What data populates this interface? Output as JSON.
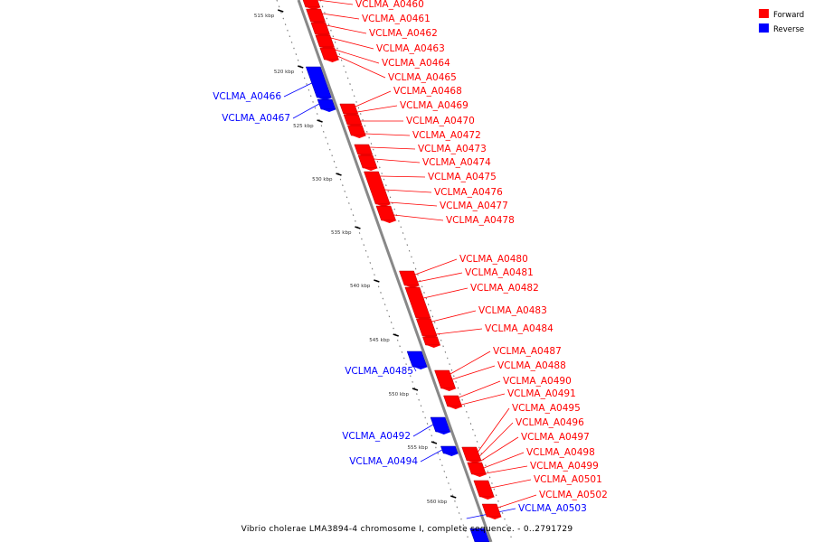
{
  "legend": {
    "forward_label": "Forward",
    "reverse_label": "Reverse",
    "forward_color": "#ff0000",
    "reverse_color": "#0000ff"
  },
  "footer": {
    "title": "Vibrio cholerae LMA3894-4 chromosome I, complete sequence. - 0..2791729"
  },
  "colors": {
    "axis": "#888888",
    "tick": "#000000",
    "dot": "#777777"
  },
  "axis": {
    "unit": "kbp",
    "ticks": [
      "515 kbp",
      "520 kbp",
      "525 kbp",
      "530 kbp",
      "535 kbp",
      "540 kbp",
      "545 kbp",
      "550 kbp",
      "555 kbp",
      "560 kbp"
    ]
  },
  "genes_forward": [
    "VCLMA_A0460",
    "VCLMA_A0461",
    "VCLMA_A0462",
    "VCLMA_A0463",
    "VCLMA_A0464",
    "VCLMA_A0465",
    "VCLMA_A0468",
    "VCLMA_A0469",
    "VCLMA_A0470",
    "VCLMA_A0472",
    "VCLMA_A0473",
    "VCLMA_A0474",
    "VCLMA_A0475",
    "VCLMA_A0476",
    "VCLMA_A0477",
    "VCLMA_A0478",
    "VCLMA_A0480",
    "VCLMA_A0481",
    "VCLMA_A0482",
    "VCLMA_A0483",
    "VCLMA_A0484",
    "VCLMA_A0487",
    "VCLMA_A0488",
    "VCLMA_A0490",
    "VCLMA_A0491",
    "VCLMA_A0495",
    "VCLMA_A0496",
    "VCLMA_A0497",
    "VCLMA_A0498",
    "VCLMA_A0499",
    "VCLMA_A0501",
    "VCLMA_A0502"
  ],
  "genes_reverse": [
    "VCLMA_A0466",
    "VCLMA_A0467",
    "VCLMA_A0485",
    "VCLMA_A0492",
    "VCLMA_A0494",
    "VCLMA_A0503"
  ]
}
